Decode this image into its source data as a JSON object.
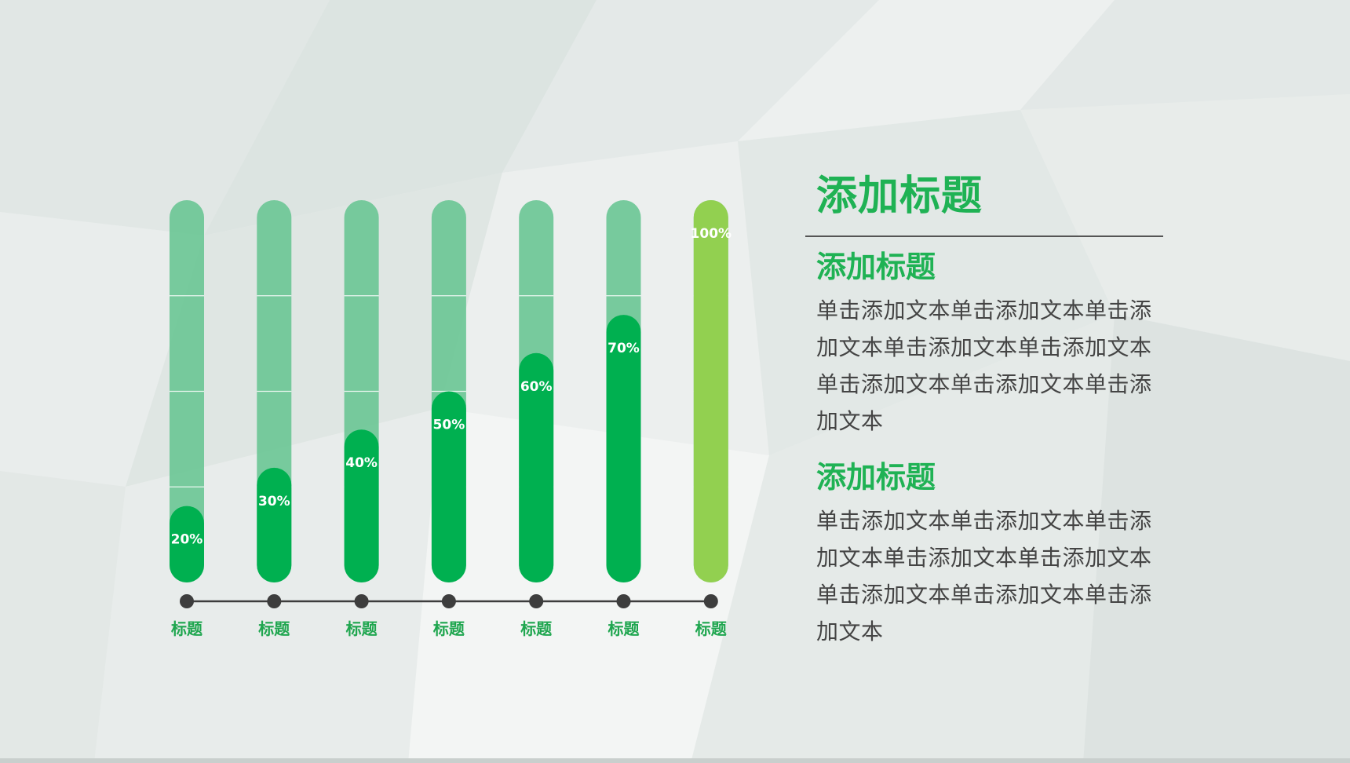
{
  "chart_data": {
    "type": "bar",
    "categories": [
      "标题",
      "标题",
      "标题",
      "标题",
      "标题",
      "标题",
      "标题"
    ],
    "values": [
      20,
      30,
      40,
      50,
      60,
      70,
      100
    ],
    "value_labels": [
      "20%",
      "30%",
      "40%",
      "50%",
      "60%",
      "70%",
      "100%"
    ],
    "ylim": [
      0,
      100
    ],
    "grid": false
  },
  "colors": {
    "track": "#6cc796",
    "fill": "#00b050",
    "full_fill": "#92d050",
    "title": "#1fb254",
    "body": "#444444"
  },
  "panel": {
    "title": "添加标题",
    "sections": [
      {
        "heading": "添加标题",
        "body": "单击添加文本单击添加文本单击添加文本单击添加文本单击添加文本单击添加文本单击添加文本单击添加文本"
      },
      {
        "heading": "添加标题",
        "body": "单击添加文本单击添加文本单击添加文本单击添加文本单击添加文本单击添加文本单击添加文本单击添加文本"
      }
    ]
  }
}
